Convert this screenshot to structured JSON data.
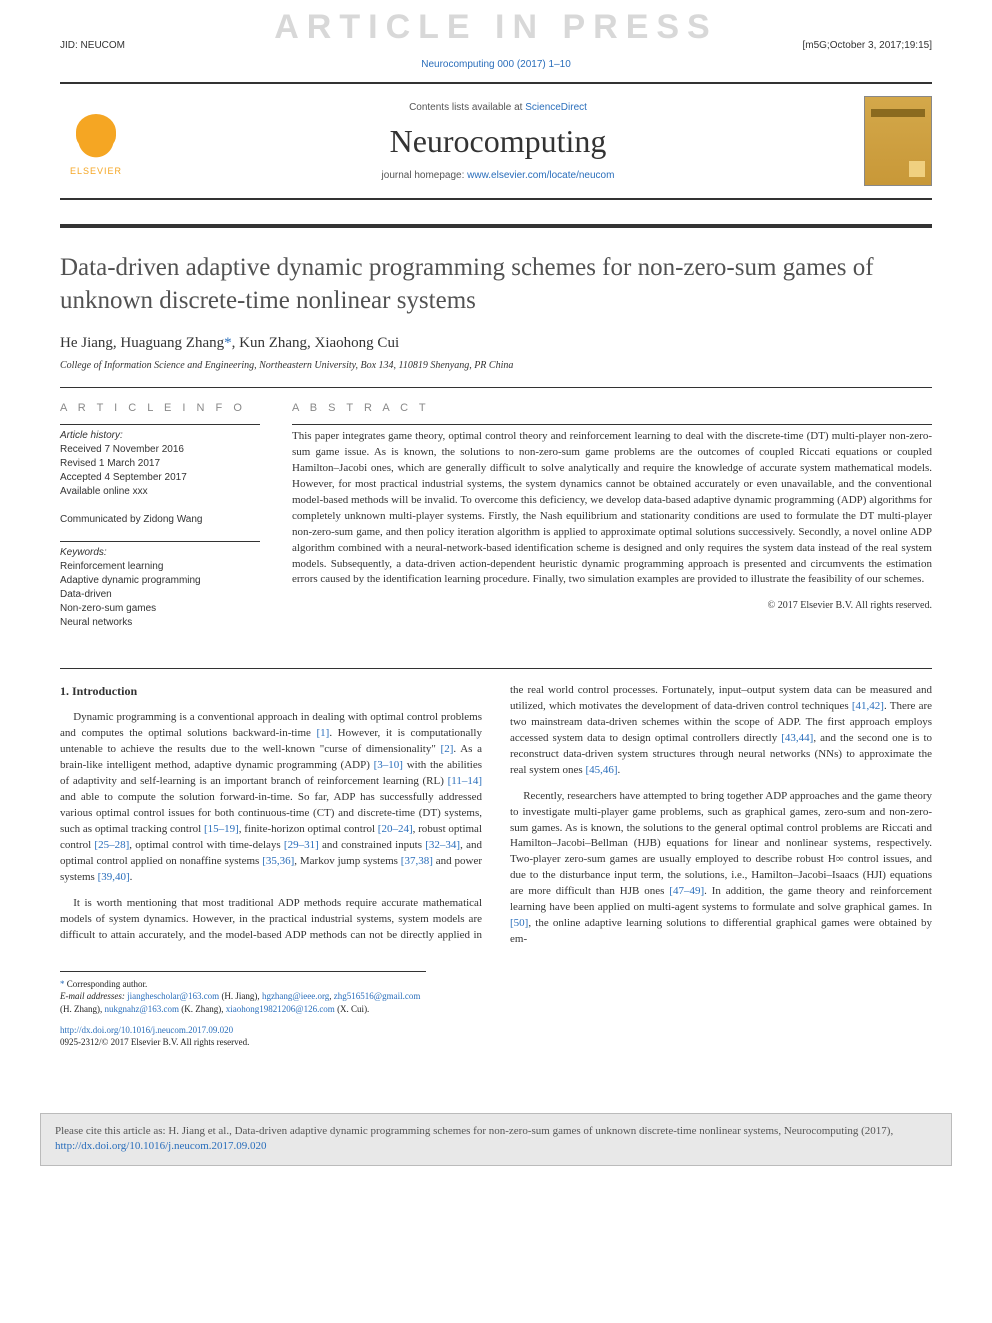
{
  "watermark": "ARTICLE IN PRESS",
  "jid": "JID: NEUCOM",
  "jid_right": "[m5G;October 3, 2017;19:15]",
  "doi_top": "Neurocomputing 000 (2017) 1–10",
  "header": {
    "contents_prefix": "Contents lists available at ",
    "contents_link": "ScienceDirect",
    "journal": "Neurocomputing",
    "homepage_prefix": "journal homepage: ",
    "homepage_url": "www.elsevier.com/locate/neucom",
    "elsevier_label": "ELSEVIER"
  },
  "title": "Data-driven adaptive dynamic programming schemes for non-zero-sum games of unknown discrete-time nonlinear systems",
  "authors": "He Jiang, Huaguang Zhang",
  "authors_suffix": ", Kun Zhang, Xiaohong Cui",
  "corr_symbol": "*",
  "affiliation": "College of Information Science and Engineering, Northeastern University, Box 134, 110819 Shenyang, PR China",
  "info": {
    "heading": "a r t i c l e   i n f o",
    "history_label": "Article history:",
    "history": [
      "Received 7 November 2016",
      "Revised 1 March 2017",
      "Accepted 4 September 2017",
      "Available online xxx"
    ],
    "communicated": "Communicated by Zidong Wang",
    "keywords_label": "Keywords:",
    "keywords": [
      "Reinforcement learning",
      "Adaptive dynamic programming",
      "Data-driven",
      "Non-zero-sum games",
      "Neural networks"
    ]
  },
  "abstract": {
    "heading": "a b s t r a c t",
    "text": "This paper integrates game theory, optimal control theory and reinforcement learning to deal with the discrete-time (DT) multi-player non-zero-sum game issue. As is known, the solutions to non-zero-sum game problems are the outcomes of coupled Riccati equations or coupled Hamilton–Jacobi ones, which are generally difficult to solve analytically and require the knowledge of accurate system mathematical models. However, for most practical industrial systems, the system dynamics cannot be obtained accurately or even unavailable, and the conventional model-based methods will be invalid. To overcome this deficiency, we develop data-based adaptive dynamic programming (ADP) algorithms for completely unknown multi-player systems. Firstly, the Nash equilibrium and stationarity conditions are used to formulate the DT multi-player non-zero-sum game, and then policy iteration algorithm is applied to approximate optimal solutions successively. Secondly, a novel online ADP algorithm combined with a neural-network-based identification scheme is designed and only requires the system data instead of the real system models. Subsequently, a data-driven action-dependent heuristic dynamic programming approach is presented and circumvents the estimation errors caused by the identification learning procedure. Finally, two simulation examples are provided to illustrate the feasibility of our schemes.",
    "copyright": "© 2017 Elsevier B.V. All rights reserved."
  },
  "section1_heading": "1. Introduction",
  "para1_a": "Dynamic programming is a conventional approach in dealing with optimal control problems and computes the optimal solutions backward-in-time ",
  "para1_b": ". However, it is computationally untenable to achieve the results due to the well-known \"curse of dimensionality\" ",
  "para1_c": ". As a brain-like intelligent method, adaptive dynamic programming (ADP) ",
  "para1_d": " with the abilities of adaptivity and self-learning is an important branch of reinforcement learning (RL) ",
  "para1_e": " and able to compute the solution forward-in-time. So far, ADP has successfully addressed various optimal control issues for both continuous-time (CT) and discrete-time (DT) systems, such as optimal tracking control ",
  "para1_f": ", finite-horizon optimal control ",
  "para1_g": ", robust optimal control ",
  "para1_h": ", optimal control with time-delays ",
  "para1_i": " and constrained inputs ",
  "para1_j": ", and optimal control applied on nonaffine systems ",
  "para1_k": ", Markov jump systems ",
  "para1_l": " and power systems ",
  "para1_m": ".",
  "para2_a": "It is worth mentioning that most traditional ADP methods require accurate mathematical models of system dynamics. How",
  "para2_b": "ever, in the practical industrial systems, system models are difficult to attain accurately, and the model-based ADP methods can not be directly applied in the real world control processes. Fortunately, input–output system data can be measured and utilized, which motivates the development of data-driven control techniques ",
  "para2_c": ". There are two mainstream data-driven schemes within the scope of ADP. The first approach employs accessed system data to design optimal controllers directly ",
  "para2_d": ", and the second one is to reconstruct data-driven system structures through neural networks (NNs) to approximate the real system ones ",
  "para2_e": ".",
  "para3_a": "Recently, researchers have attempted to bring together ADP approaches and the game theory to investigate multi-player game problems, such as graphical games, zero-sum and non-zero-sum games. As is known, the solutions to the general optimal control problems are Riccati and Hamilton–Jacobi–Bellman (HJB) equations for linear and nonlinear systems, respectively. Two-player zero-sum games are usually employed to describe robust H∞ control issues, and due to the disturbance input term, the solutions, i.e., Hamilton–Jacobi–Isaacs (HJI) equations are more difficult than HJB ones ",
  "para3_b": ". In addition, the game theory and reinforcement learning have been applied on multi-agent systems to formulate and solve graphical games. In ",
  "para3_c": ", the online adaptive learning solutions to differential graphical games were obtained by em-",
  "refs": {
    "r1": "[1]",
    "r2": "[2]",
    "r3_10": "[3–10]",
    "r11_14": "[11–14]",
    "r15_19": "[15–19]",
    "r20_24": "[20–24]",
    "r25_28": "[25–28]",
    "r29_31": "[29–31]",
    "r32_34": "[32–34]",
    "r35_36": "[35,36]",
    "r37_38": "[37,38]",
    "r39_40": "[39,40]",
    "r41_42": "[41,42]",
    "r43_44": "[43,44]",
    "r45_46": "[45,46]",
    "r47_49": "[47–49]",
    "r50": "[50]"
  },
  "footnotes": {
    "corr_label": "Corresponding author.",
    "email_label": "E-mail addresses:",
    "emails": [
      {
        "addr": "jianghescholar@163.com",
        "name": "(H. Jiang),"
      },
      {
        "addr": "hgzhang@ieee.org",
        "name": ","
      },
      {
        "addr": "zhg516516@gmail.com",
        "name": "(H. Zhang),"
      },
      {
        "addr": "nukgnahz@163.com",
        "name": "(K. Zhang),"
      },
      {
        "addr": "xiaohong19821206@126.com",
        "name": "(X. Cui)."
      }
    ]
  },
  "doi_block": {
    "doi": "http://dx.doi.org/10.1016/j.neucom.2017.09.020",
    "issn": "0925-2312/© 2017 Elsevier B.V. All rights reserved."
  },
  "cite_box": {
    "prefix": "Please cite this article as: H. Jiang et al., Data-driven adaptive dynamic programming schemes for non-zero-sum games of unknown discrete-time nonlinear systems, Neurocomputing (2017), ",
    "doi": "http://dx.doi.org/10.1016/j.neucom.2017.09.020"
  },
  "colors": {
    "link": "#2a6ebb",
    "watermark": "#d8d8d8",
    "title": "#525252",
    "elsevier": "#f5a623",
    "citebox_bg": "#e8e8e8"
  }
}
